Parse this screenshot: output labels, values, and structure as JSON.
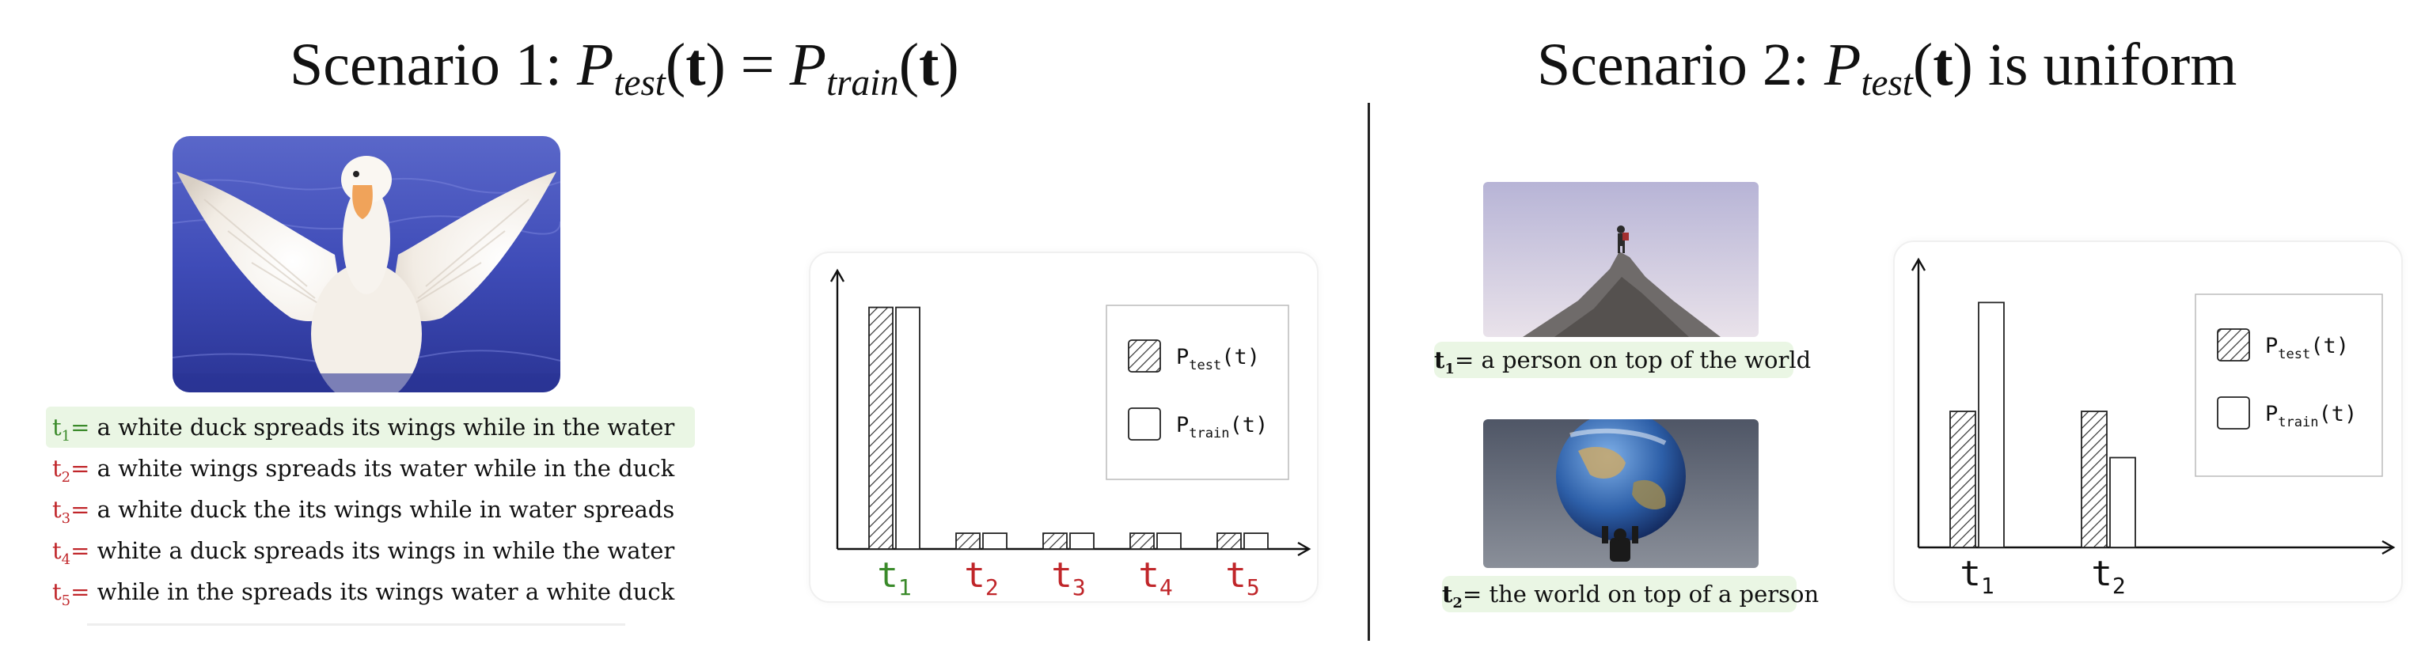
{
  "scenario1": {
    "title_prefix": "Scenario 1: ",
    "captions": [
      {
        "label": "t",
        "sub": "1",
        "eq": "=",
        "text": " a white duck spreads its wings while in the water",
        "color": "#3a8a2a",
        "highlight": true
      },
      {
        "label": "t",
        "sub": "2",
        "eq": "=",
        "text": " a white wings spreads its water while in the duck",
        "color": "#c0262a",
        "highlight": false
      },
      {
        "label": "t",
        "sub": "3",
        "eq": "=",
        "text": " a white duck the its wings while in water spreads",
        "color": "#c0262a",
        "highlight": false
      },
      {
        "label": "t",
        "sub": "4",
        "eq": "=",
        "text": " white a duck spreads its wings in while the water",
        "color": "#c0262a",
        "highlight": false
      },
      {
        "label": "t",
        "sub": "5",
        "eq": "=",
        "text": " while in the spreads its wings water a white duck",
        "color": "#c0262a",
        "highlight": false
      }
    ]
  },
  "scenario2": {
    "title_prefix": "Scenario 2: ",
    "title_suffix": " is uniform",
    "captions": [
      {
        "label": "t",
        "sub": "1",
        "eq": "=",
        "text": " a person on top of the world"
      },
      {
        "label": "t",
        "sub": "2",
        "eq": "=",
        "text": " the world on top of a person"
      }
    ]
  },
  "legend": {
    "p": "P",
    "test_sub": "test",
    "train_sub": "train",
    "arg": "(t)"
  },
  "chart_data": [
    {
      "type": "bar",
      "categories": [
        "t1",
        "t2",
        "t3",
        "t4",
        "t5"
      ],
      "category_colors": [
        "#3a8a2a",
        "#c0262a",
        "#c0262a",
        "#c0262a",
        "#c0262a"
      ],
      "series": [
        {
          "name": "P_test(t)",
          "pattern": "hatched",
          "values": [
            0.92,
            0.06,
            0.06,
            0.06,
            0.06
          ]
        },
        {
          "name": "P_train(t)",
          "pattern": "empty",
          "values": [
            0.92,
            0.06,
            0.06,
            0.06,
            0.06
          ]
        }
      ],
      "legend_position": "top-right",
      "grid": false
    },
    {
      "type": "bar",
      "categories": [
        "t1",
        "t2"
      ],
      "category_colors": [
        "#111111",
        "#111111"
      ],
      "series": [
        {
          "name": "P_test(t)",
          "pattern": "hatched",
          "values": [
            0.5,
            0.5
          ]
        },
        {
          "name": "P_train(t)",
          "pattern": "empty",
          "values": [
            0.9,
            0.33
          ]
        }
      ],
      "legend_position": "top-right",
      "grid": false
    }
  ],
  "colors": {
    "green": "#3a8a2a",
    "red": "#c0262a",
    "caption_highlight": "#eaf6e4"
  }
}
